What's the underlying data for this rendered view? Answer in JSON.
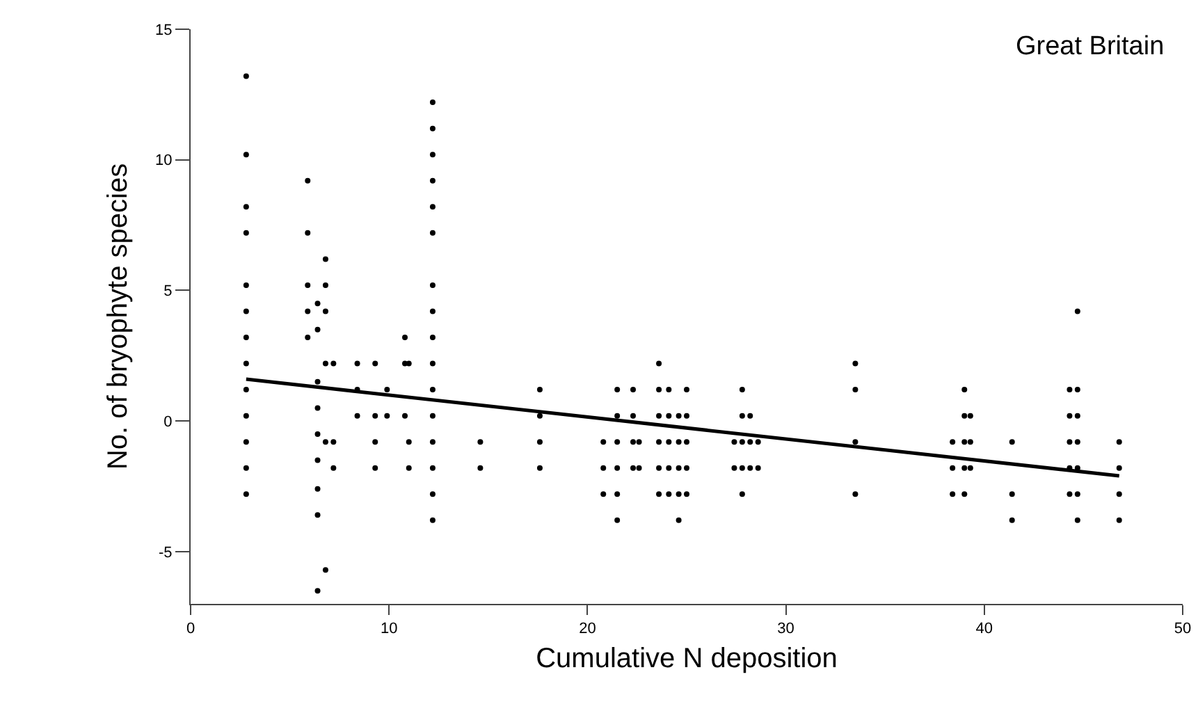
{
  "chart_data": {
    "type": "scatter",
    "xlabel": "Cumulative N deposition",
    "ylabel": "No. of bryophyte species",
    "annotations": [
      "Great Britain"
    ],
    "xlim": [
      0,
      50
    ],
    "ylim": [
      -7,
      15
    ],
    "xticks": [
      0,
      10,
      20,
      30,
      40,
      50
    ],
    "yticks": [
      -5,
      0,
      5,
      10,
      15
    ],
    "grid": false,
    "marker": "circle",
    "series": [
      {
        "color": "#000000",
        "x": [
          2.8,
          2.8,
          2.8,
          2.8,
          2.8,
          2.8,
          2.8,
          2.8,
          2.8,
          2.8,
          2.8,
          2.8,
          2.8,
          5.9,
          5.9,
          5.9,
          5.9,
          5.9,
          6.4,
          6.4,
          6.4,
          6.4,
          6.4,
          6.4,
          6.4,
          6.4,
          6.4,
          6.8,
          6.8,
          6.8,
          6.8,
          6.8,
          6.8,
          7.2,
          7.2,
          7.2,
          8.4,
          8.4,
          8.4,
          9.3,
          9.3,
          9.3,
          9.3,
          9.9,
          9.9,
          10.8,
          10.8,
          10.8,
          11.0,
          11.0,
          11.0,
          12.2,
          12.2,
          12.2,
          12.2,
          12.2,
          12.2,
          12.2,
          12.2,
          12.2,
          12.2,
          12.2,
          12.2,
          12.2,
          12.2,
          12.2,
          12.2,
          14.6,
          14.6,
          17.6,
          17.6,
          17.6,
          17.6,
          20.8,
          20.8,
          20.8,
          21.5,
          21.5,
          21.5,
          21.5,
          21.5,
          21.5,
          22.3,
          22.3,
          22.3,
          22.3,
          22.6,
          22.6,
          23.6,
          23.6,
          23.6,
          23.6,
          23.6,
          23.6,
          24.1,
          24.1,
          24.1,
          24.1,
          24.1,
          24.6,
          24.6,
          24.6,
          24.6,
          24.6,
          25.0,
          25.0,
          25.0,
          25.0,
          25.0,
          27.4,
          27.4,
          27.8,
          27.8,
          27.8,
          27.8,
          27.8,
          28.2,
          28.2,
          28.2,
          28.6,
          28.6,
          33.5,
          33.5,
          33.5,
          33.5,
          38.4,
          38.4,
          38.4,
          39.0,
          39.0,
          39.0,
          39.0,
          39.0,
          39.3,
          39.3,
          39.3,
          41.4,
          41.4,
          41.4,
          44.3,
          44.3,
          44.3,
          44.3,
          44.3,
          44.7,
          44.7,
          44.7,
          44.7,
          44.7,
          44.7,
          44.7,
          46.8,
          46.8,
          46.8,
          46.8
        ],
        "values": [
          13.2,
          10.2,
          8.2,
          7.2,
          5.2,
          4.2,
          3.2,
          2.2,
          1.2,
          0.2,
          -0.8,
          -1.8,
          -2.8,
          9.2,
          7.2,
          5.2,
          4.2,
          3.2,
          4.5,
          3.5,
          1.5,
          0.5,
          -0.5,
          -1.5,
          -2.6,
          -3.6,
          -6.5,
          6.2,
          5.2,
          4.2,
          2.2,
          -0.8,
          -5.7,
          2.2,
          -0.8,
          -1.8,
          2.2,
          1.2,
          0.2,
          2.2,
          0.2,
          -0.8,
          -1.8,
          1.2,
          0.2,
          3.2,
          2.2,
          0.2,
          2.2,
          -0.8,
          -1.8,
          12.2,
          11.2,
          10.2,
          9.2,
          8.2,
          7.2,
          5.2,
          4.2,
          3.2,
          2.2,
          1.2,
          0.2,
          -0.8,
          -1.8,
          -2.8,
          -3.8,
          -0.8,
          -1.8,
          1.2,
          0.2,
          -0.8,
          -1.8,
          -0.8,
          -1.8,
          -2.8,
          1.2,
          0.2,
          -0.8,
          -1.8,
          -2.8,
          -3.8,
          1.2,
          0.2,
          -0.8,
          -1.8,
          -0.8,
          -1.8,
          2.2,
          1.2,
          0.2,
          -0.8,
          -1.8,
          -2.8,
          1.2,
          0.2,
          -0.8,
          -1.8,
          -2.8,
          0.2,
          -0.8,
          -1.8,
          -2.8,
          -3.8,
          1.2,
          0.2,
          -0.8,
          -1.8,
          -2.8,
          -0.8,
          -1.8,
          1.2,
          0.2,
          -0.8,
          -1.8,
          -2.8,
          0.2,
          -0.8,
          -1.8,
          -0.8,
          -1.8,
          2.2,
          1.2,
          -0.8,
          -2.8,
          -0.8,
          -1.8,
          -2.8,
          1.2,
          0.2,
          -0.8,
          -1.8,
          -2.8,
          0.2,
          -0.8,
          -1.8,
          -0.8,
          -2.8,
          -3.8,
          1.2,
          0.2,
          -0.8,
          -1.8,
          -2.8,
          4.2,
          1.2,
          0.2,
          -0.8,
          -1.8,
          -2.8,
          -3.8,
          -0.8,
          -1.8,
          -2.8,
          -3.8
        ]
      },
      {
        "type": "line",
        "color": "#000000",
        "marker": "none",
        "line_style": "solid",
        "x": [
          2.8,
          46.8
        ],
        "values": [
          1.6,
          -2.1
        ]
      }
    ]
  }
}
